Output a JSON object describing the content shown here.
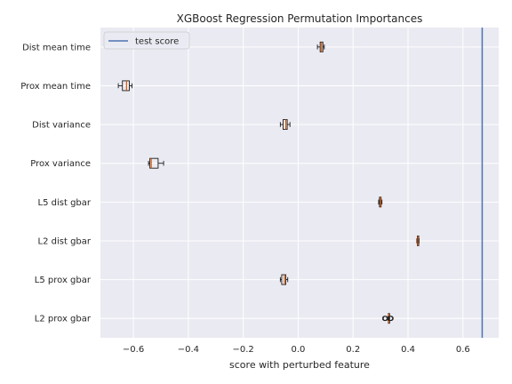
{
  "chart_data": {
    "type": "boxplot",
    "title": "XGBoost Regression Permutation Importances",
    "xlabel": "score with perturbed feature",
    "ylabel": "",
    "xlim": [
      -0.72,
      0.73
    ],
    "xticks": [
      -0.6,
      -0.4,
      -0.2,
      0.0,
      0.2,
      0.4,
      0.6
    ],
    "xtick_labels": [
      "−0.6",
      "−0.4",
      "−0.2",
      "0.0",
      "0.2",
      "0.4",
      "0.6"
    ],
    "grid": true,
    "legend": {
      "position": "top-left",
      "entries": [
        "test score"
      ]
    },
    "reference_line": {
      "name": "test score",
      "value": 0.67,
      "color": "#4c72b0"
    },
    "categories": [
      "Dist mean time",
      "Prox mean time",
      "Dist variance",
      "Prox variance",
      "L5 dist gbar",
      "L2 dist gbar",
      "L5 prox gbar",
      "L2 prox gbar"
    ],
    "boxes": [
      {
        "label": "Dist mean time",
        "whislo": 0.07,
        "q1": 0.08,
        "med": 0.085,
        "q3": 0.09,
        "whishi": 0.095,
        "fliers": []
      },
      {
        "label": "Prox mean time",
        "whislo": -0.655,
        "q1": -0.64,
        "med": -0.625,
        "q3": -0.615,
        "whishi": -0.605,
        "fliers": []
      },
      {
        "label": "Dist variance",
        "whislo": -0.065,
        "q1": -0.055,
        "med": -0.045,
        "q3": -0.04,
        "whishi": -0.03,
        "fliers": []
      },
      {
        "label": "Prox variance",
        "whislo": -0.545,
        "q1": -0.54,
        "med": -0.535,
        "q3": -0.51,
        "whishi": -0.49,
        "fliers": []
      },
      {
        "label": "L5 dist gbar",
        "whislo": 0.293,
        "q1": 0.296,
        "med": 0.3,
        "q3": 0.302,
        "whishi": 0.305,
        "fliers": []
      },
      {
        "label": "L2 dist gbar",
        "whislo": 0.432,
        "q1": 0.434,
        "med": 0.436,
        "q3": 0.438,
        "whishi": 0.44,
        "fliers": []
      },
      {
        "label": "L5 prox gbar",
        "whislo": -0.065,
        "q1": -0.06,
        "med": -0.05,
        "q3": -0.045,
        "whishi": -0.038,
        "fliers": []
      },
      {
        "label": "L2 prox gbar",
        "whislo": 0.327,
        "q1": 0.328,
        "med": 0.329,
        "q3": 0.33,
        "whishi": 0.331,
        "fliers": [
          0.315,
          0.318,
          0.335,
          0.338
        ]
      }
    ],
    "colors": {
      "plot_background": "#eaeaf2",
      "grid": "#ffffff",
      "box_edge": "#1a1a1a",
      "median": "#dd5500",
      "reference_line": "#4c72b0"
    }
  }
}
